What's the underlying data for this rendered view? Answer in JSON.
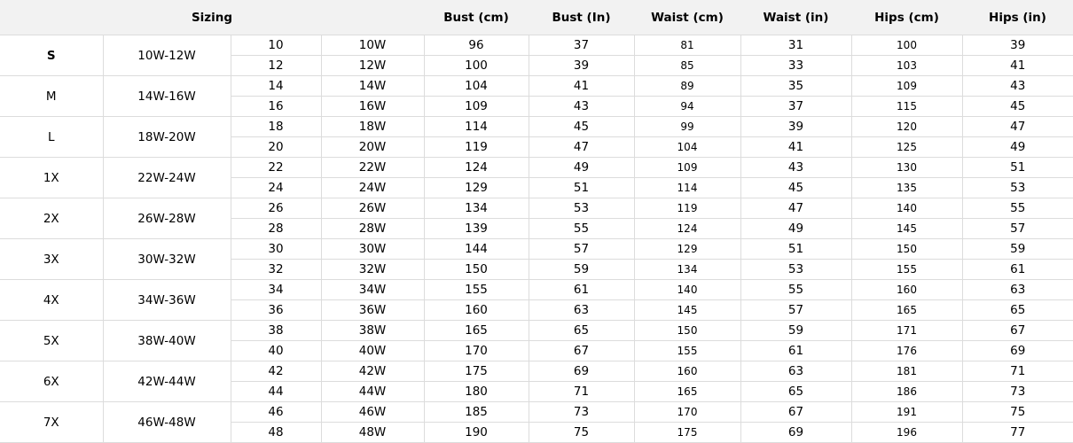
{
  "headers": {
    "sizing": "Sizing",
    "bust_cm": "Bust (cm)",
    "bust_in": "Bust (In)",
    "waist_cm": "Waist (cm)",
    "waist_in": "Waist (in)",
    "hips_cm": "Hips (cm)",
    "hips_in": "Hips (in)"
  },
  "groups": [
    {
      "size": "S",
      "range": "10W-12W",
      "rows": [
        [
          "10",
          "10W",
          "96",
          "37",
          "81",
          "31",
          "100",
          "39"
        ],
        [
          "12",
          "12W",
          "100",
          "39",
          "85",
          "33",
          "103",
          "41"
        ]
      ]
    },
    {
      "size": "M",
      "range": "14W-16W",
      "rows": [
        [
          "14",
          "14W",
          "104",
          "41",
          "89",
          "35",
          "109",
          "43"
        ],
        [
          "16",
          "16W",
          "109",
          "43",
          "94",
          "37",
          "115",
          "45"
        ]
      ]
    },
    {
      "size": "L",
      "range": "18W-20W",
      "rows": [
        [
          "18",
          "18W",
          "114",
          "45",
          "99",
          "39",
          "120",
          "47"
        ],
        [
          "20",
          "20W",
          "119",
          "47",
          "104",
          "41",
          "125",
          "49"
        ]
      ]
    },
    {
      "size": "1X",
      "range": "22W-24W",
      "rows": [
        [
          "22",
          "22W",
          "124",
          "49",
          "109",
          "43",
          "130",
          "51"
        ],
        [
          "24",
          "24W",
          "129",
          "51",
          "114",
          "45",
          "135",
          "53"
        ]
      ]
    },
    {
      "size": "2X",
      "range": "26W-28W",
      "rows": [
        [
          "26",
          "26W",
          "134",
          "53",
          "119",
          "47",
          "140",
          "55"
        ],
        [
          "28",
          "28W",
          "139",
          "55",
          "124",
          "49",
          "145",
          "57"
        ]
      ]
    },
    {
      "size": "3X",
      "range": "30W-32W",
      "rows": [
        [
          "30",
          "30W",
          "144",
          "57",
          "129",
          "51",
          "150",
          "59"
        ],
        [
          "32",
          "32W",
          "150",
          "59",
          "134",
          "53",
          "155",
          "61"
        ]
      ]
    },
    {
      "size": "4X",
      "range": "34W-36W",
      "rows": [
        [
          "34",
          "34W",
          "155",
          "61",
          "140",
          "55",
          "160",
          "63"
        ],
        [
          "36",
          "36W",
          "160",
          "63",
          "145",
          "57",
          "165",
          "65"
        ]
      ]
    },
    {
      "size": "5X",
      "range": "38W-40W",
      "rows": [
        [
          "38",
          "38W",
          "165",
          "65",
          "150",
          "59",
          "171",
          "67"
        ],
        [
          "40",
          "40W",
          "170",
          "67",
          "155",
          "61",
          "176",
          "69"
        ]
      ]
    },
    {
      "size": "6X",
      "range": "42W-44W",
      "rows": [
        [
          "42",
          "42W",
          "175",
          "69",
          "160",
          "63",
          "181",
          "71"
        ],
        [
          "44",
          "44W",
          "180",
          "71",
          "165",
          "65",
          "186",
          "73"
        ]
      ]
    },
    {
      "size": "7X",
      "range": "46W-48W",
      "rows": [
        [
          "46",
          "46W",
          "185",
          "73",
          "170",
          "67",
          "191",
          "75"
        ],
        [
          "48",
          "48W",
          "190",
          "75",
          "175",
          "69",
          "196",
          "77"
        ]
      ]
    }
  ]
}
